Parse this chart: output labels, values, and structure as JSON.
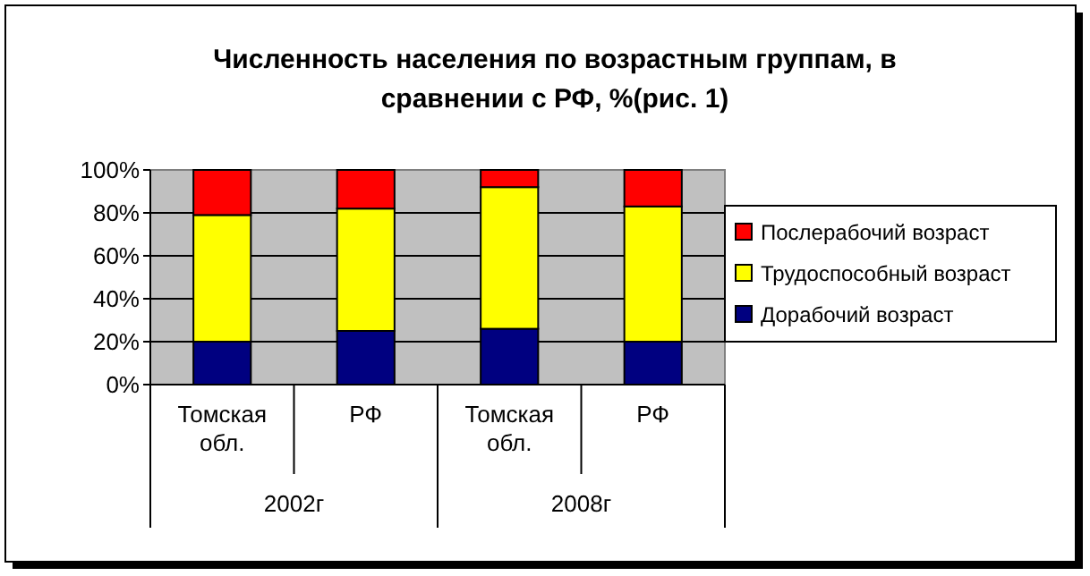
{
  "chart_data": {
    "type": "bar",
    "title": "Численность населения по возрастным группам, в сравнении с РФ, %(рис. 1)",
    "categories": [
      "Томская обл.",
      "РФ",
      "Томская обл.",
      "РФ"
    ],
    "annotations": [
      "2002г",
      "2008г"
    ],
    "stacked": true,
    "series": [
      {
        "name": "Дорабочий возраст",
        "color": "#000080",
        "values": [
          20,
          25,
          26,
          20
        ]
      },
      {
        "name": "Трудоспособный возраст",
        "color": "#ffff00",
        "values": [
          59,
          57,
          66,
          63
        ]
      },
      {
        "name": "Послерабочий возраст",
        "color": "#ff0000",
        "values": [
          21,
          18,
          8,
          17
        ]
      }
    ],
    "ylim": [
      0,
      100
    ],
    "yticks": [
      {
        "value": 0,
        "label": "0%"
      },
      {
        "value": 20,
        "label": "20%"
      },
      {
        "value": 40,
        "label": "40%"
      },
      {
        "value": 60,
        "label": "60%"
      },
      {
        "value": 80,
        "label": "80%"
      },
      {
        "value": 100,
        "label": "100%"
      }
    ],
    "grid": "y",
    "legend": "right"
  }
}
